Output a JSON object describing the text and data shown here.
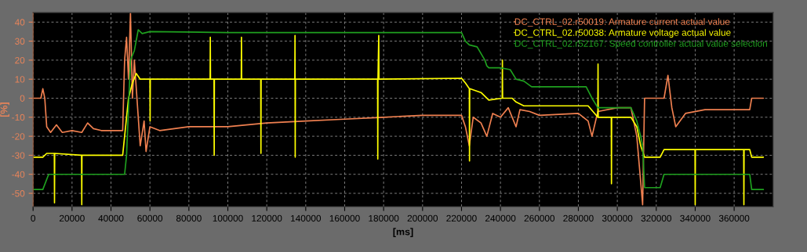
{
  "chart_data": {
    "type": "line",
    "xlabel": "[ms]",
    "ylabel": "[%]",
    "xlim": [
      0,
      380000
    ],
    "ylim": [
      -57,
      45
    ],
    "xticks": [
      0,
      20000,
      40000,
      60000,
      80000,
      100000,
      120000,
      140000,
      160000,
      180000,
      200000,
      220000,
      240000,
      260000,
      280000,
      300000,
      320000,
      340000,
      360000
    ],
    "yticks": [
      -50,
      -40,
      -30,
      -20,
      -10,
      0,
      10,
      20,
      30,
      40
    ],
    "grid": true,
    "legend": "top right",
    "series": [
      {
        "name": "DC_CTRL_02.r50019: Armature current actual value",
        "color": "#f08050",
        "x": [
          0,
          4000,
          5000,
          6000,
          7000,
          9000,
          12000,
          15000,
          20000,
          25000,
          28000,
          31000,
          35000,
          46000,
          47000,
          48000,
          49000,
          50000,
          51000,
          52000,
          54000,
          55000,
          57000,
          58000,
          60000,
          65000,
          80000,
          100000,
          120000,
          140000,
          160000,
          180000,
          200000,
          220000,
          222000,
          224000,
          226000,
          230000,
          233000,
          236000,
          240000,
          244000,
          248000,
          250000,
          255000,
          260000,
          280000,
          285000,
          287000,
          290000,
          300000,
          307000,
          310000,
          313000,
          314000,
          324000,
          326000,
          328000,
          330000,
          335000,
          345000,
          360000,
          368000,
          369000,
          375000
        ],
        "values": [
          0,
          0,
          5,
          0,
          -15,
          -18,
          -14,
          -18,
          -17,
          -18,
          -13,
          -16,
          -17,
          -17,
          20,
          32,
          10,
          45,
          0,
          20,
          -10,
          -25,
          -12,
          -28,
          -15,
          -17,
          -15,
          -15,
          -13,
          -12,
          -11,
          -10,
          -9,
          -9,
          -15,
          -25,
          -10,
          -13,
          -20,
          -8,
          -10,
          -5,
          -15,
          -6,
          -7,
          -9,
          -8,
          -12,
          -20,
          -7,
          -5,
          -5,
          -20,
          -56,
          0,
          0,
          12,
          -5,
          -15,
          -8,
          -6,
          -6,
          -6,
          0,
          0
        ]
      },
      {
        "name": "DC_CTRL_02.r50038: Armature voltage actual value",
        "color": "#ffff00",
        "x": [
          0,
          5000,
          7000,
          10900,
          11000,
          11100,
          24900,
          25000,
          25100,
          46000,
          47000,
          49000,
          51000,
          53000,
          55000,
          60000,
          60100,
          60200,
          90900,
          91000,
          91100,
          92900,
          93000,
          93100,
          106900,
          107000,
          107100,
          116900,
          117000,
          117100,
          134400,
          134500,
          134600,
          134700,
          176900,
          177000,
          177100,
          177500,
          177600,
          220000,
          222000,
          224000,
          224100,
          224200,
          230000,
          234000,
          240900,
          241000,
          241100,
          246000,
          248000,
          252000,
          256000,
          285000,
          290000,
          290100,
          290200,
          295000,
          296900,
          297000,
          297100,
          307000,
          310000,
          312000,
          314000,
          322000,
          324000,
          339900,
          340000,
          340100,
          364900,
          365000,
          365100,
          368000,
          369000,
          375000
        ],
        "values": [
          -31,
          -31,
          -29,
          -29,
          -55,
          -29,
          -30,
          -56,
          -30,
          -30,
          -20,
          0,
          8,
          13,
          10,
          10,
          -12,
          10,
          10,
          32,
          10,
          10,
          -30,
          10,
          10,
          32,
          10,
          10,
          -29,
          10,
          10,
          33,
          -31,
          10,
          10,
          -32,
          10,
          33,
          10,
          10.5,
          8,
          5,
          -33,
          5,
          3,
          -1,
          0,
          20,
          0,
          0,
          -2,
          -4,
          -4,
          -4,
          -10,
          18,
          -10,
          -10,
          -10,
          -45,
          -10,
          -10,
          -15,
          -25,
          -31,
          -31,
          -27,
          -27,
          -56,
          -27,
          -27,
          -56,
          -27,
          -27,
          -31,
          -31
        ]
      },
      {
        "name": "DC_CTRL_02.r52167: Speed controller actual value selection",
        "color": "#1fa01f",
        "x": [
          0,
          5000,
          8000,
          47000,
          48000,
          50000,
          52000,
          54000,
          56000,
          60000,
          100000,
          200000,
          220000,
          222000,
          224000,
          228000,
          232000,
          233000,
          234000,
          240000,
          245000,
          248000,
          252000,
          256000,
          260000,
          284000,
          287000,
          290000,
          295000,
          307000,
          310000,
          312000,
          313000,
          314000,
          322000,
          324000,
          330000,
          360000,
          368000,
          369000,
          375000
        ],
        "values": [
          -48,
          -48,
          -40,
          -40,
          -30,
          20,
          25,
          36,
          34,
          35,
          34.5,
          34.5,
          34.5,
          30,
          28,
          27,
          20,
          17,
          16,
          16,
          15,
          10,
          9,
          6,
          6,
          6,
          0,
          -5,
          -5,
          -5,
          -12,
          -20,
          -25,
          -47,
          -47,
          -40,
          -40,
          -40,
          -40,
          -48,
          -48
        ]
      }
    ]
  }
}
